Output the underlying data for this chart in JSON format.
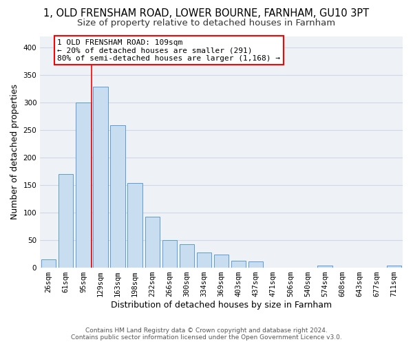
{
  "title1": "1, OLD FRENSHAM ROAD, LOWER BOURNE, FARNHAM, GU10 3PT",
  "title2": "Size of property relative to detached houses in Farnham",
  "xlabel": "Distribution of detached houses by size in Farnham",
  "ylabel": "Number of detached properties",
  "categories": [
    "26sqm",
    "61sqm",
    "95sqm",
    "129sqm",
    "163sqm",
    "198sqm",
    "232sqm",
    "266sqm",
    "300sqm",
    "334sqm",
    "369sqm",
    "403sqm",
    "437sqm",
    "471sqm",
    "506sqm",
    "540sqm",
    "574sqm",
    "608sqm",
    "643sqm",
    "677sqm",
    "711sqm"
  ],
  "values": [
    15,
    170,
    300,
    328,
    258,
    153,
    92,
    50,
    43,
    28,
    24,
    12,
    11,
    0,
    0,
    0,
    4,
    0,
    0,
    0,
    4
  ],
  "bar_color": "#c8ddf0",
  "bar_edge_color": "#5b9bd5",
  "vline_x_index": 2.5,
  "vline_color": "red",
  "annotation_text": "1 OLD FRENSHAM ROAD: 109sqm\n← 20% of detached houses are smaller (291)\n80% of semi-detached houses are larger (1,168) →",
  "annotation_box_color": "white",
  "annotation_box_edge": "red",
  "ylim": [
    0,
    420
  ],
  "yticks": [
    0,
    50,
    100,
    150,
    200,
    250,
    300,
    350,
    400
  ],
  "footer1": "Contains HM Land Registry data © Crown copyright and database right 2024.",
  "footer2": "Contains public sector information licensed under the Open Government Licence v3.0.",
  "bg_color": "#ffffff",
  "plot_bg_color": "#eef2f7",
  "grid_color": "#d0d8e4",
  "title1_fontsize": 10.5,
  "title2_fontsize": 9.5,
  "xlabel_fontsize": 9,
  "ylabel_fontsize": 9,
  "tick_fontsize": 7.5,
  "annotation_fontsize": 8,
  "footer_fontsize": 6.5
}
